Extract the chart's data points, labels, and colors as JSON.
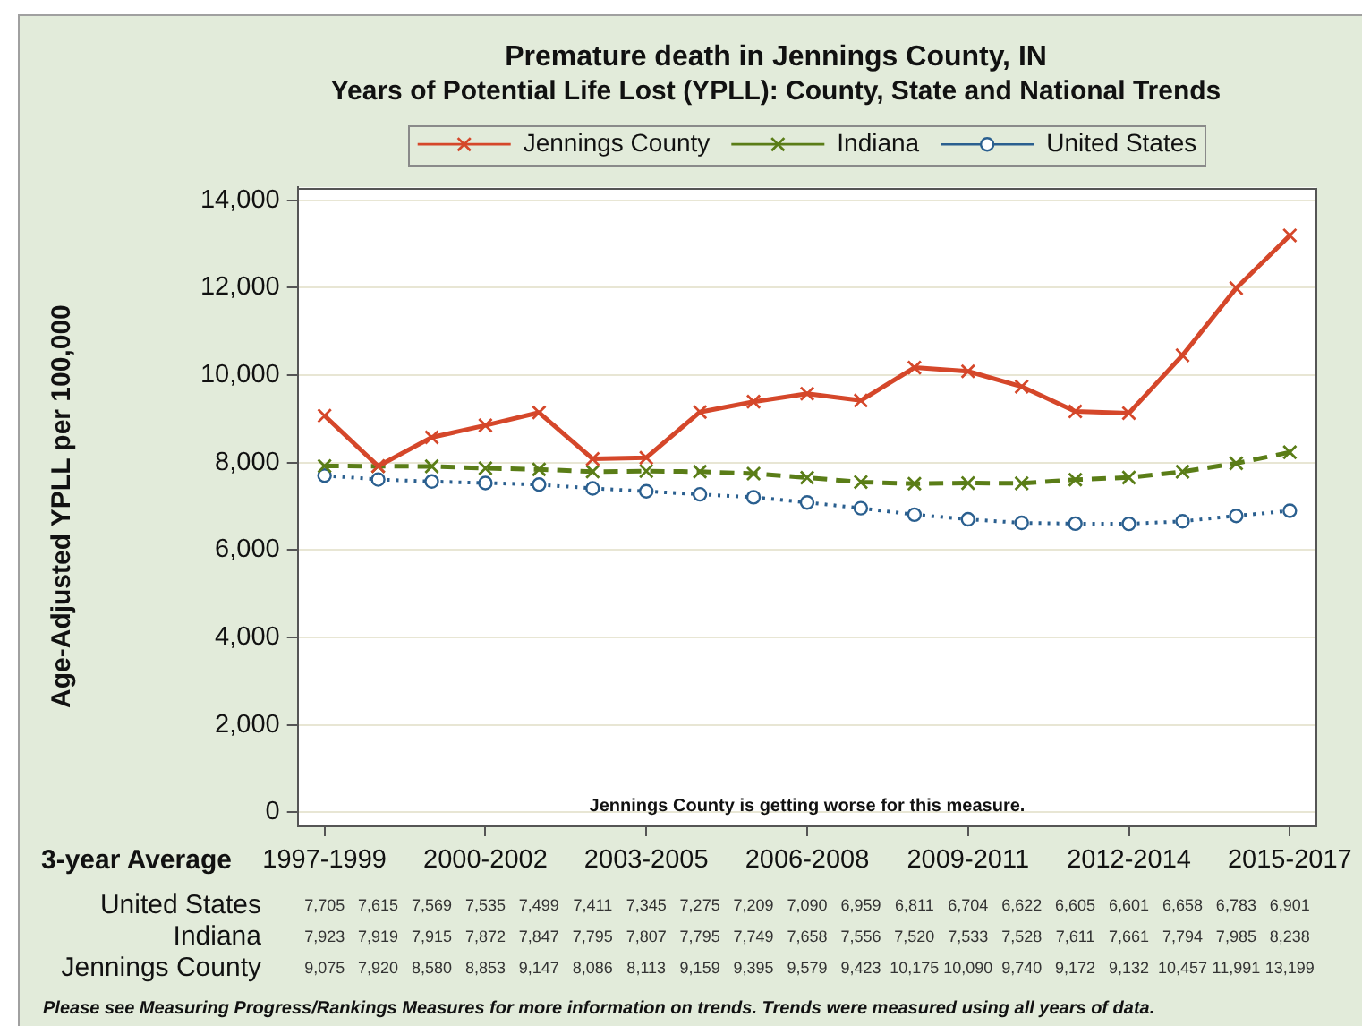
{
  "chart_data": {
    "type": "line",
    "title": "Premature death in Jennings County, IN",
    "subtitle": "Years of Potential Life Lost (YPLL): County, State and National Trends",
    "xlabel": "3-year Average",
    "ylabel": "Age-Adjusted YPLL per 100,000",
    "categories": [
      "1997-1999",
      null,
      null,
      "2000-2002",
      null,
      null,
      "2003-2005",
      null,
      null,
      "2006-2008",
      null,
      null,
      "2009-2011",
      null,
      null,
      "2012-2014",
      null,
      null,
      "2015-2017"
    ],
    "series": [
      {
        "name": "Jennings County",
        "color": "#d5472a",
        "marker": "cross",
        "line_style": "solid",
        "values": [
          9075,
          7920,
          8580,
          8853,
          9147,
          8086,
          8113,
          9159,
          9395,
          9579,
          9423,
          10175,
          10090,
          9740,
          9172,
          9132,
          10457,
          11991,
          13199
        ],
        "value_labels": [
          "9,075",
          "7,920",
          "8,580",
          "8,853",
          "9,147",
          "8,086",
          "8,113",
          "9,159",
          "9,395",
          "9,579",
          "9,423",
          "10,175",
          "10,090",
          "9,740",
          "9,172",
          "9,132",
          "10,457",
          "11,991",
          "13,199"
        ]
      },
      {
        "name": "Indiana",
        "color": "#5a7d17",
        "marker": "cross",
        "line_style": "dashed",
        "values": [
          7923,
          7919,
          7915,
          7872,
          7847,
          7795,
          7807,
          7795,
          7749,
          7658,
          7556,
          7520,
          7533,
          7528,
          7611,
          7661,
          7794,
          7985,
          8238
        ],
        "value_labels": [
          "7,923",
          "7,919",
          "7,915",
          "7,872",
          "7,847",
          "7,795",
          "7,807",
          "7,795",
          "7,749",
          "7,658",
          "7,556",
          "7,520",
          "7,533",
          "7,528",
          "7,611",
          "7,661",
          "7,794",
          "7,985",
          "8,238"
        ]
      },
      {
        "name": "United States",
        "color": "#2a5f8f",
        "marker": "circle",
        "line_style": "dotted",
        "values": [
          7705,
          7615,
          7569,
          7535,
          7499,
          7411,
          7345,
          7275,
          7209,
          7090,
          6959,
          6811,
          6704,
          6622,
          6605,
          6601,
          6658,
          6783,
          6901
        ],
        "value_labels": [
          "7,705",
          "7,615",
          "7,569",
          "7,535",
          "7,499",
          "7,411",
          "7,345",
          "7,275",
          "7,209",
          "7,090",
          "6,959",
          "6,811",
          "6,704",
          "6,622",
          "6,605",
          "6,601",
          "6,658",
          "6,783",
          "6,901"
        ]
      }
    ],
    "ylim": [
      -300,
      14300
    ],
    "yticks": [
      0,
      {
        "value": 2000,
        "label": "2,000"
      },
      {
        "value": 4000,
        "label": "4,000"
      },
      {
        "value": 6000,
        "label": "6,000"
      },
      {
        "value": 8000,
        "label": "8,000"
      },
      {
        "value": 10000,
        "label": "10,000"
      },
      {
        "value": 12000,
        "label": "12,000"
      },
      {
        "value": 14000,
        "label": "14,000"
      }
    ],
    "grid": "y",
    "legend": "top",
    "annotations": [
      "Jennings County is getting worse for this measure.",
      "Please see Measuring Progress/Rankings Measures for more information on trends. Trends were measured using all years of data."
    ]
  }
}
